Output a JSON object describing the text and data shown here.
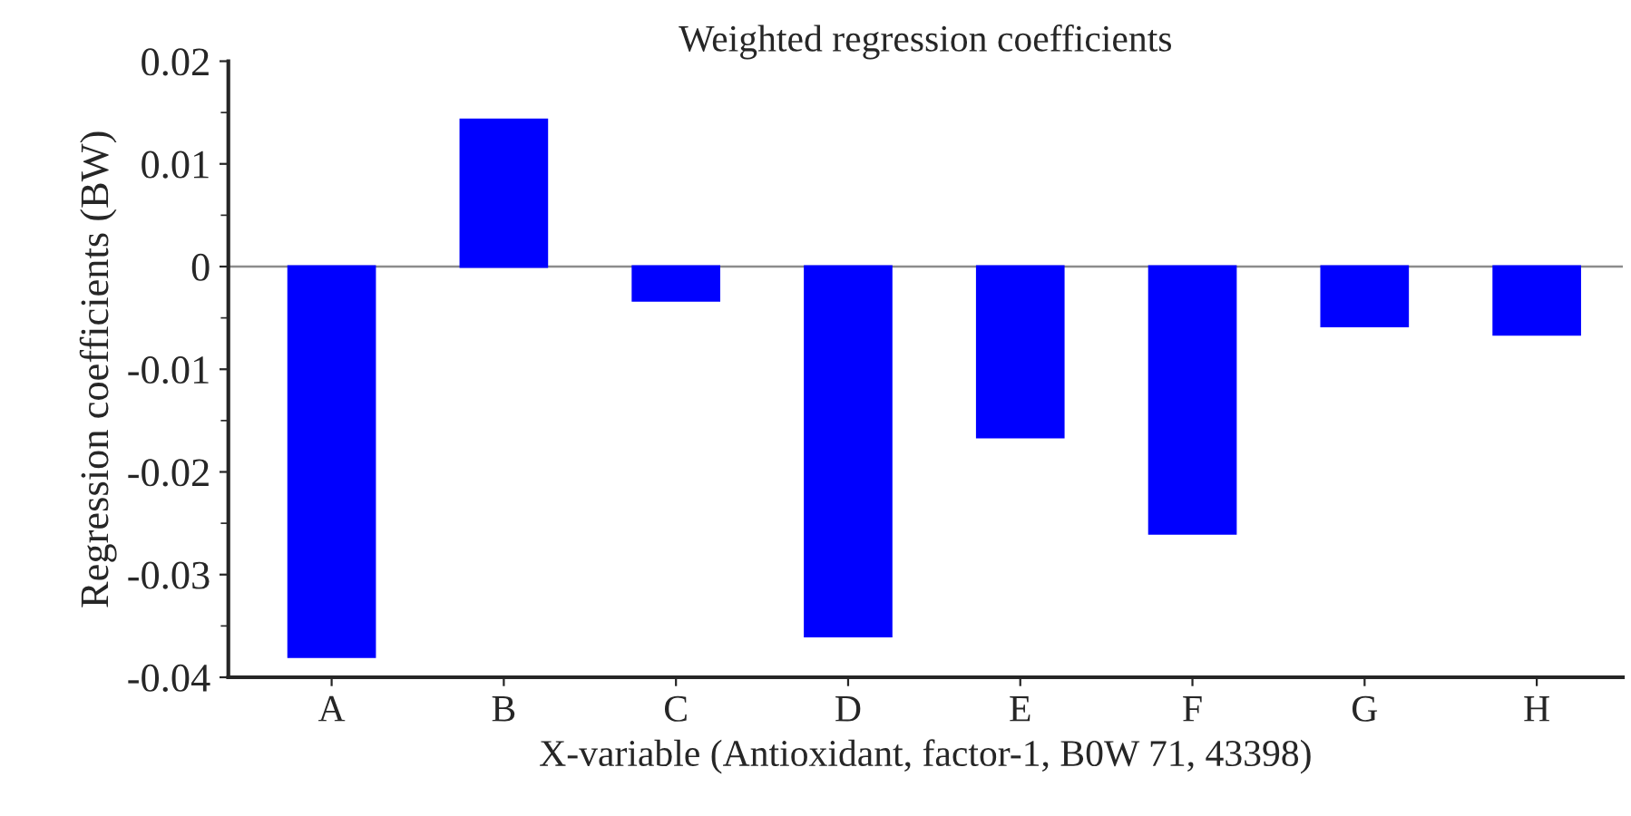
{
  "chart_data": {
    "type": "bar",
    "title": "Weighted regression coefficients",
    "xlabel": "X-variable (Antioxidant, factor-1, B0W 71, 43398)",
    "ylabel": "Regression coefficients (BW)",
    "categories": [
      "A",
      "B",
      "C",
      "D",
      "E",
      "F",
      "G",
      "H"
    ],
    "values": [
      -0.038,
      0.0143,
      -0.0033,
      -0.036,
      -0.0166,
      -0.026,
      -0.0058,
      -0.0066
    ],
    "color": "#0000ff",
    "ylim": [
      -0.04,
      0.02
    ],
    "yticks": [
      {
        "value": -0.04,
        "label": "-0.04"
      },
      {
        "value": -0.03,
        "label": "-0.03"
      },
      {
        "value": -0.02,
        "label": "-0.02"
      },
      {
        "value": -0.01,
        "label": "-0.01"
      },
      0,
      {
        "value": 0.01,
        "label": "0.01"
      },
      {
        "value": 0.02,
        "label": "0.02"
      }
    ],
    "ref_lines": [
      {
        "axis": "y",
        "value": 0,
        "label": null,
        "color": "#8c8c8c"
      }
    ],
    "grid": false,
    "legend": false
  }
}
